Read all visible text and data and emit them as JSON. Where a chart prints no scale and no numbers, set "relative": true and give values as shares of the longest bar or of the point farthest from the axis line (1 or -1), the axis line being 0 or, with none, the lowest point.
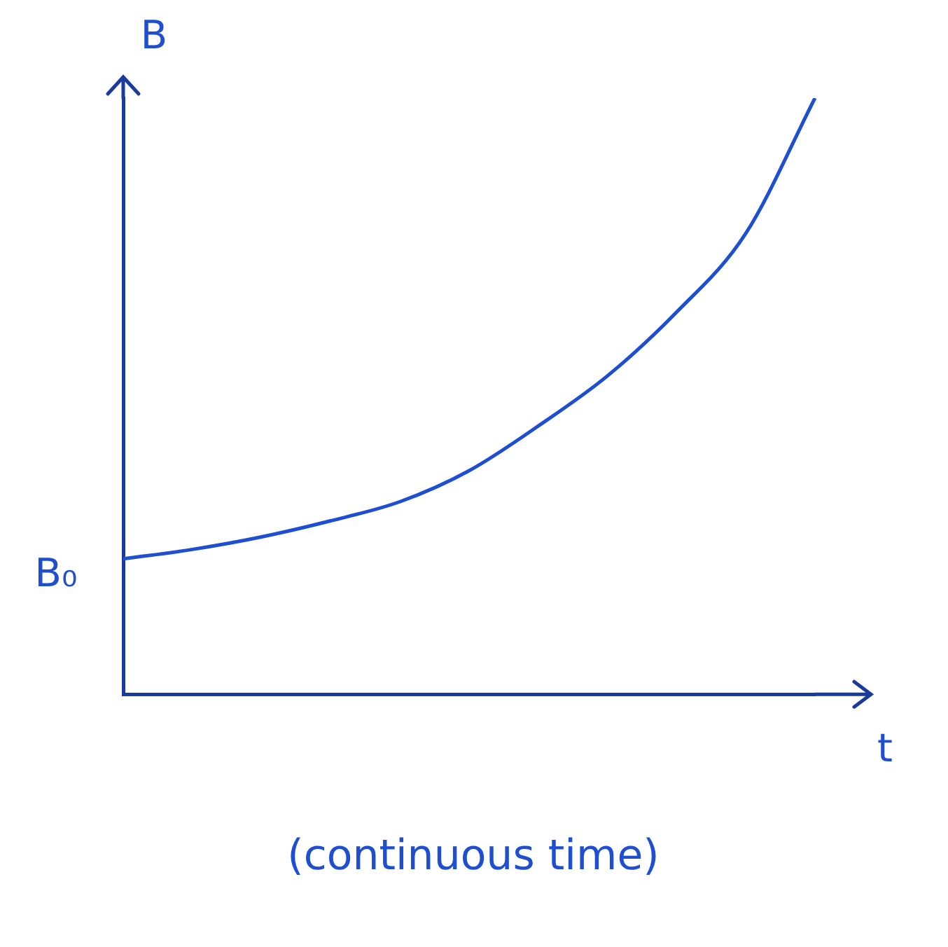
{
  "chart_data": {
    "type": "line",
    "relative": true,
    "xlabel": "t",
    "ylabel": "B",
    "categories": [
      null,
      null,
      null,
      null,
      null,
      null,
      null,
      null,
      null,
      null,
      null
    ],
    "series": [
      {
        "color": "#1f4fd1",
        "values": [
          0.227,
          0.243,
          0.264,
          0.291,
          0.323,
          0.375,
          0.45,
          0.534,
          0.641,
          0.773,
          1.0
        ]
      }
    ],
    "annotations": [
      "B₀",
      "(continuous time)"
    ],
    "grid": false,
    "legend": false,
    "marker": "none",
    "line_style": "solid"
  }
}
